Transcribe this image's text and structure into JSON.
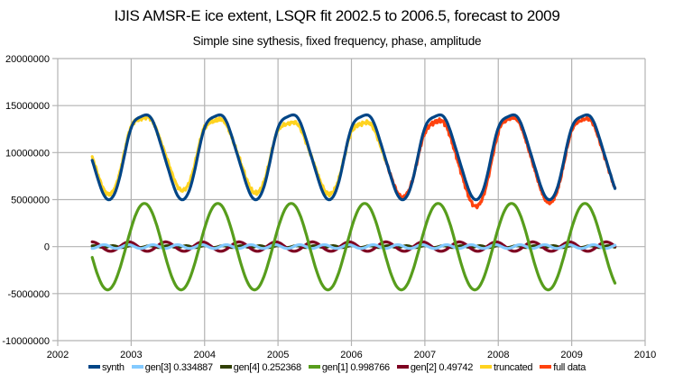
{
  "chart_data": {
    "type": "line",
    "title": "IJIS AMSR-E ice extent, LSQR fit 2002.5 to 2006.5, forecast to 2009",
    "subtitle": "Simple sine sythesis, fixed frequency, phase, amplitude",
    "xlabel": "",
    "ylabel": "",
    "xlim": [
      2002,
      2010
    ],
    "ylim": [
      -10000000,
      20000000
    ],
    "x_ticks": [
      2002,
      2003,
      2004,
      2005,
      2006,
      2007,
      2008,
      2009,
      2010
    ],
    "y_ticks": [
      -10000000,
      -5000000,
      0,
      5000000,
      10000000,
      15000000,
      20000000
    ],
    "x_tick_labels": [
      "2002",
      "2003",
      "2004",
      "2005",
      "2006",
      "2007",
      "2008",
      "2009",
      "2010"
    ],
    "y_tick_labels": [
      "-10000000",
      "-5000000",
      "0",
      "5000000",
      "10000000",
      "15000000",
      "20000000"
    ],
    "grid": true,
    "legend_position": "bottom",
    "x_range_plotted": [
      2002.47,
      2009.59
    ],
    "sample_step_years": 0.02,
    "model": {
      "offset": 9950000,
      "period_years": 1.0,
      "generators": {
        "gen1": {
          "harmonic": 1,
          "amplitude": 4600000,
          "peak_phase": 0.18
        },
        "gen2": {
          "harmonic": 2,
          "amplitude": 500000,
          "peak_phase": 0.47
        },
        "gen3": {
          "harmonic": 3,
          "amplitude": 200000,
          "peak_phase": 0.63
        },
        "gen4": {
          "harmonic": 4,
          "amplitude": 100000,
          "peak_phase": 0.5
        }
      }
    },
    "observed_deviation_from_synth": {
      "description": "data minus synth at seasonal peak / trough, by year",
      "years": [
        2002,
        2003,
        2004,
        2005,
        2006,
        2007,
        2008,
        2009
      ],
      "peak_dev": [
        0,
        -200000,
        -500000,
        -800000,
        -800000,
        -600000,
        -300000,
        -400000
      ],
      "trough_dev": [
        600000,
        1000000,
        700000,
        600000,
        300000,
        -700000,
        -300000,
        0
      ]
    },
    "key_points": {
      "synth_peaks": [
        [
          2003.18,
          14900000
        ],
        [
          2004.18,
          14900000
        ],
        [
          2005.18,
          14900000
        ],
        [
          2006.18,
          14900000
        ],
        [
          2007.18,
          14900000
        ],
        [
          2008.18,
          14900000
        ],
        [
          2009.18,
          14900000
        ]
      ],
      "synth_troughs": [
        [
          2002.68,
          5000000
        ],
        [
          2003.68,
          5000000
        ],
        [
          2004.68,
          5000000
        ],
        [
          2005.68,
          5000000
        ],
        [
          2006.68,
          5000000
        ],
        [
          2007.68,
          5000000
        ],
        [
          2008.68,
          5000000
        ]
      ],
      "synth_end": [
        2009.59,
        6500000
      ],
      "gen1_peak": 4600000,
      "gen1_trough": -4600000
    },
    "series": [
      {
        "name": "synth",
        "key": "synth",
        "color": "#004586",
        "width": 3.2,
        "range": [
          2002.47,
          2009.59
        ]
      },
      {
        "name": "gen[3] 0.334887",
        "key": "gen3",
        "color": "#83caff",
        "width": 3.2,
        "range": [
          2002.47,
          2009.59
        ]
      },
      {
        "name": "gen[4] 0.252368",
        "key": "gen4",
        "color": "#314004",
        "width": 3.2,
        "range": [
          2002.47,
          2009.59
        ]
      },
      {
        "name": "gen[1] 0.998766",
        "key": "gen1",
        "color": "#579d1c",
        "width": 3.2,
        "range": [
          2002.47,
          2009.59
        ]
      },
      {
        "name": "gen[2] 0.49742",
        "key": "gen2",
        "color": "#7e0021",
        "width": 3.2,
        "range": [
          2002.47,
          2009.59
        ]
      },
      {
        "name": "truncated",
        "key": "truncated",
        "color": "#ffd320",
        "width": 3.2,
        "range": [
          2002.47,
          2006.47
        ]
      },
      {
        "name": "full data",
        "key": "full",
        "color": "#ff420e",
        "width": 3.2,
        "range": [
          2006.45,
          2009.59
        ]
      }
    ],
    "draw_order": [
      "gen4",
      "gen2",
      "gen3",
      "gen1",
      "full",
      "truncated",
      "synth"
    ]
  },
  "colors": {
    "grid": "#b3b3b3",
    "background": "#ffffff"
  }
}
